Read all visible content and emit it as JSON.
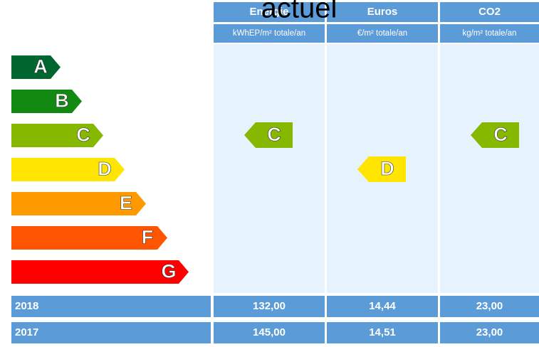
{
  "overlay_title": "actuel",
  "columns": [
    {
      "header": "Energie",
      "unit": "kWhEP/m² totale/an",
      "class": "C"
    },
    {
      "header": "Euros",
      "unit": "€/m² totale/an",
      "class": "D"
    },
    {
      "header": "CO2",
      "unit": "kg/m² totale/an",
      "class": "C"
    }
  ],
  "classes": [
    {
      "letter": "A",
      "color": "#00652e"
    },
    {
      "letter": "B",
      "color": "#128a12"
    },
    {
      "letter": "C",
      "color": "#86b800"
    },
    {
      "letter": "D",
      "color": "#ffe500"
    },
    {
      "letter": "E",
      "color": "#ff9900"
    },
    {
      "letter": "F",
      "color": "#ff5400"
    },
    {
      "letter": "G",
      "color": "#ff0000"
    }
  ],
  "rows": [
    {
      "year": "2018",
      "values": [
        "132,00",
        "14,44",
        "23,00"
      ]
    },
    {
      "year": "2017",
      "values": [
        "145,00",
        "14,51",
        "23,00"
      ]
    }
  ]
}
